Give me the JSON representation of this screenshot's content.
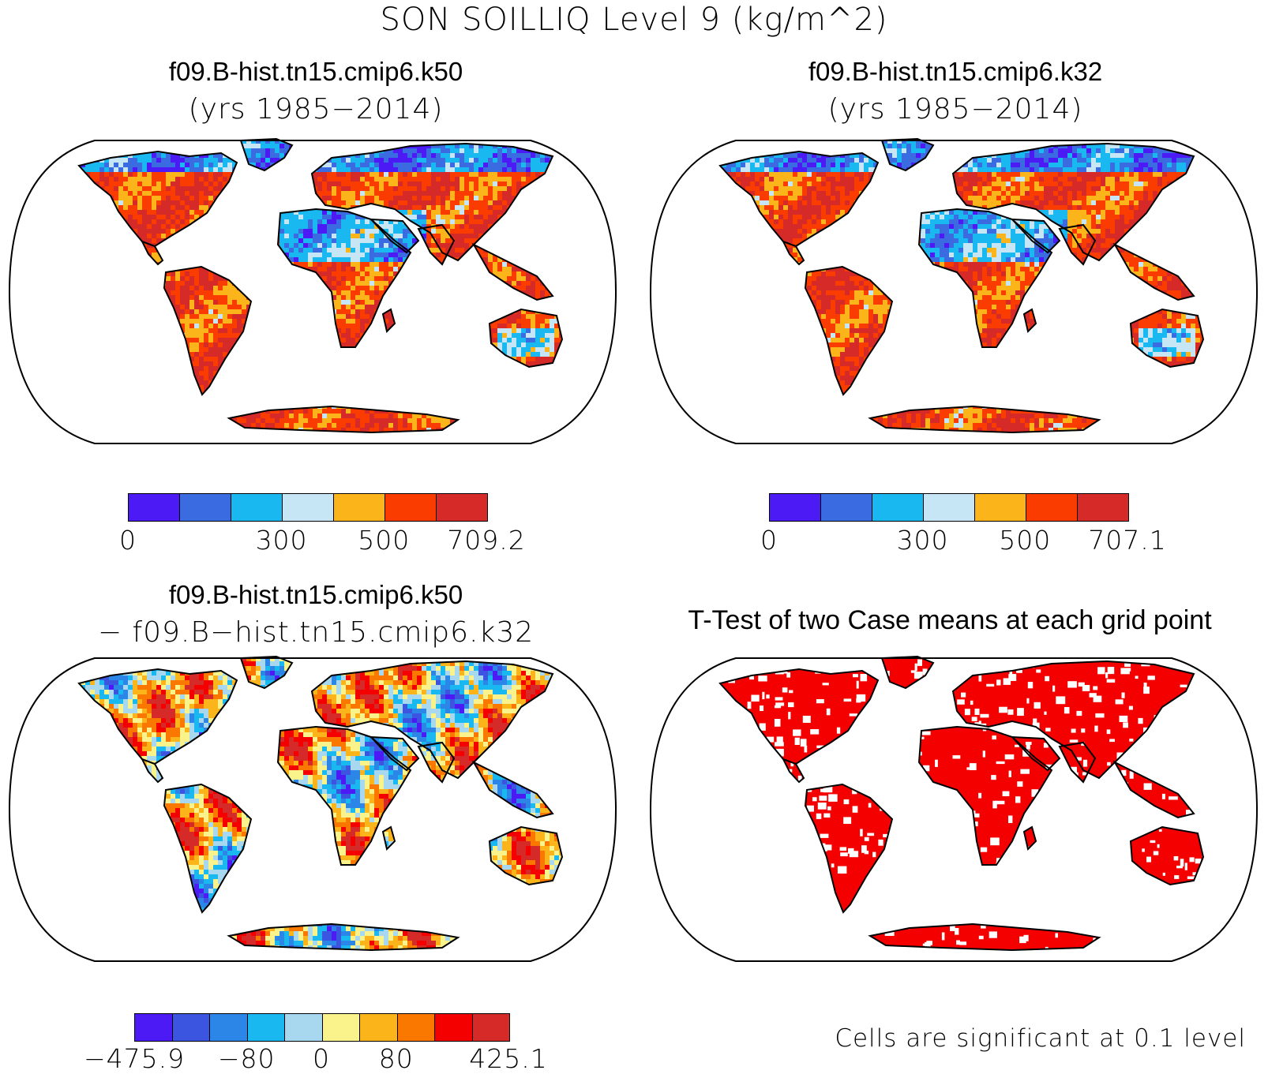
{
  "figure": {
    "title": "SON SOILLIQ Level 9 (kg/m^2)"
  },
  "panels": [
    {
      "title": "f09.B-hist.tn15.cmip6.k50",
      "subtitle": "(yrs 1985−2014)",
      "colorbar": {
        "colors": [
          "#4b1af5",
          "#3b6be0",
          "#1ab8f0",
          "#c6e5f5",
          "#fbb41a",
          "#fa3c00",
          "#d62a28"
        ],
        "ticks": [
          "0",
          "300",
          "500",
          "709.2"
        ]
      }
    },
    {
      "title": "f09.B-hist.tn15.cmip6.k32",
      "subtitle": "(yrs 1985−2014)",
      "colorbar": {
        "colors": [
          "#4b1af5",
          "#3b6be0",
          "#1ab8f0",
          "#c6e5f5",
          "#fbb41a",
          "#fa3c00",
          "#d62a28"
        ],
        "ticks": [
          "0",
          "300",
          "500",
          "707.1"
        ]
      }
    },
    {
      "title": "f09.B-hist.tn15.cmip6.k50",
      "subtitle": "− f09.B−hist.tn15.cmip6.k32",
      "colorbar": {
        "colors": [
          "#4b1af5",
          "#3b55e0",
          "#2b86e8",
          "#1ab8f0",
          "#a8d8f0",
          "#faf28a",
          "#fbb41a",
          "#fa7800",
          "#f50000",
          "#d62a28"
        ],
        "ticks": [
          "−475.9",
          "−80",
          "0",
          "80",
          "425.1"
        ]
      }
    },
    {
      "title": "T-Test of two Case means at each grid point",
      "note": "Cells are significant at 0.1 level",
      "color": "#f50000"
    }
  ]
}
